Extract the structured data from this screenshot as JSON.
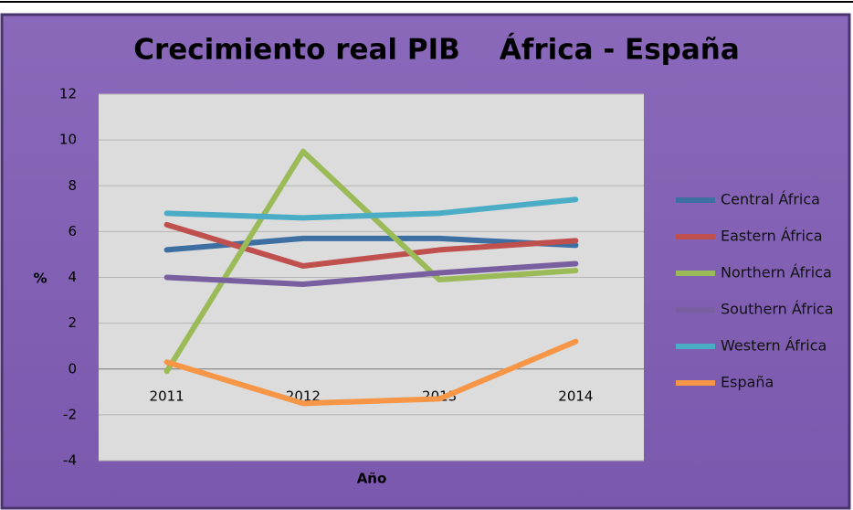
{
  "chart_data": {
    "type": "line",
    "title": "Crecimiento real PIB    África - España",
    "x_label": "Año",
    "y_label": "%",
    "categories": [
      "2011",
      "2012",
      "2013",
      "2014"
    ],
    "series": [
      {
        "name": "Central África",
        "color": "#3d6fa3",
        "values": [
          5.2,
          5.7,
          5.7,
          5.4
        ]
      },
      {
        "name": "Eastern África",
        "color": "#c0504d",
        "values": [
          6.3,
          4.5,
          5.2,
          5.6
        ]
      },
      {
        "name": "Northern África",
        "color": "#9bbb59",
        "values": [
          -0.1,
          9.5,
          3.9,
          4.3
        ]
      },
      {
        "name": "Southern África",
        "color": "#7a5fa0",
        "values": [
          4.0,
          3.7,
          4.2,
          4.6
        ]
      },
      {
        "name": "Western África",
        "color": "#4bacc6",
        "values": [
          6.8,
          6.6,
          6.8,
          7.4
        ]
      },
      {
        "name": "España",
        "color": "#f79646",
        "values": [
          0.3,
          -1.5,
          -1.3,
          1.2
        ]
      }
    ],
    "ylim": [
      -4,
      12
    ],
    "yticks": [
      -4,
      -2,
      0,
      2,
      4,
      6,
      8,
      10,
      12
    ],
    "grid": true,
    "legend": "right"
  }
}
